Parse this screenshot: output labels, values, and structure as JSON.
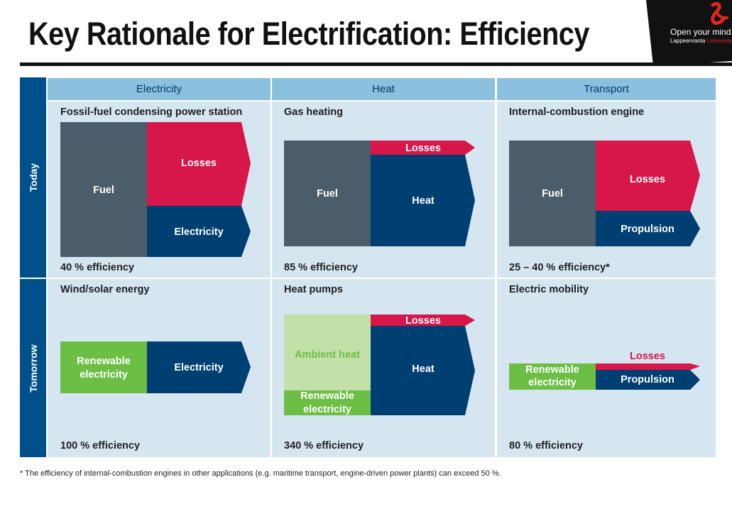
{
  "title": "Key Rationale for Electrification: Efficiency",
  "brand": {
    "tagline": "Open your mind.",
    "sub_prefix": "Lappeenranta ",
    "sub_highlight": "University"
  },
  "colors": {
    "fuel": "#4b5c6a",
    "losses": "#d7164a",
    "output": "#003f72",
    "green": "#6cbe45",
    "ambient": "#c2e1a8",
    "header": "#8bc0de",
    "row_header": "#00508c",
    "cell": "#d6e6f1"
  },
  "columns": [
    "Electricity",
    "Heat",
    "Transport"
  ],
  "rows": [
    "Today",
    "Tomorrow"
  ],
  "cells": {
    "today_electricity": {
      "title": "Fossil-fuel condensing power station",
      "efficiency": "40 % efficiency",
      "fuel": "Fuel",
      "losses": "Losses",
      "output": "Electricity"
    },
    "today_heat": {
      "title": "Gas heating",
      "efficiency": "85 % efficiency",
      "fuel": "Fuel",
      "losses": "Losses",
      "output": "Heat"
    },
    "today_transport": {
      "title": "Internal-combustion engine",
      "efficiency": "25 – 40 % efficiency*",
      "fuel": "Fuel",
      "losses": "Losses",
      "output": "Propulsion"
    },
    "tomorrow_electricity": {
      "title": "Wind/solar energy",
      "efficiency": "100 % efficiency",
      "input_line1": "Renewable",
      "input_line2": "electricity",
      "output": "Electricity"
    },
    "tomorrow_heat": {
      "title": "Heat pumps",
      "efficiency": "340 % efficiency",
      "ambient": "Ambient heat",
      "input_line1": "Renewable",
      "input_line2": "electricity",
      "losses": "Losses",
      "output": "Heat"
    },
    "tomorrow_transport": {
      "title": "Electric mobility",
      "efficiency": "80 % efficiency",
      "input_line1": "Renewable",
      "input_line2": "electricity",
      "losses": "Losses",
      "output": "Propulsion"
    }
  },
  "footnote": "* The efficiency of internal-combustion engines in other applications (e.g. maritime transport, engine-driven power plants) can exceed 50 %."
}
